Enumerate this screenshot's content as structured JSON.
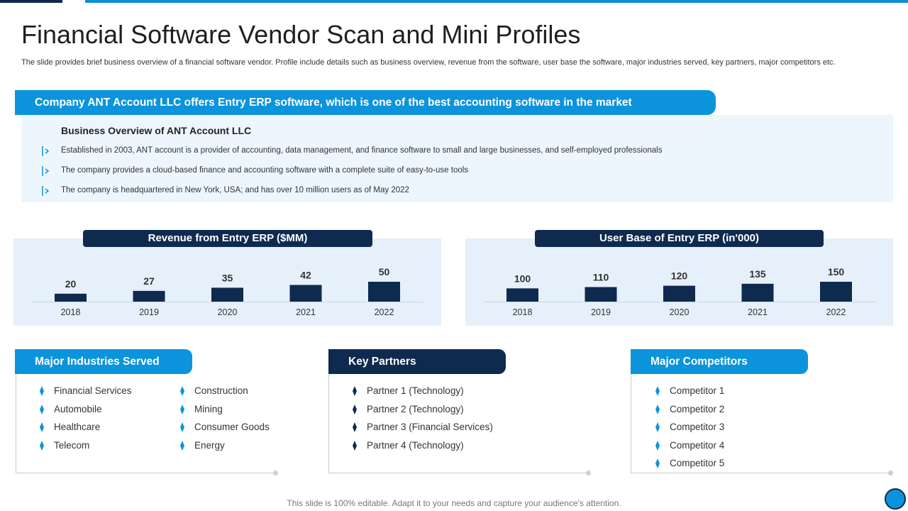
{
  "title": "Financial Software Vendor Scan and Mini Profiles",
  "subtitle": "The slide provides brief business overview of a financial software vendor. Profile include details such as business overview, revenue from the software, user base the software, major industries served, key partners, major competitors etc.",
  "banner": "Company ANT Account LLC offers Entry ERP software,  which is one of the best accounting software in the market",
  "overview": {
    "heading": "Business Overview of ANT Account  LLC",
    "items": [
      "Established in 2003, ANT account is a provider of accounting, data management, and finance software to small and large businesses, and self-employed professionals",
      "The company provides a cloud-based finance and accounting software with a complete suite of easy-to-use tools",
      "The company is headquartered in New York,  USA;  and has over  10 million users as of May  2022"
    ]
  },
  "chart_data": [
    {
      "type": "bar",
      "title": "Revenue from Entry ERP ($MM)",
      "categories": [
        "2018",
        "2019",
        "2020",
        "2021",
        "2022"
      ],
      "values": [
        20,
        27,
        35,
        42,
        50
      ],
      "color": "#0f2a4f"
    },
    {
      "type": "bar",
      "title": "User Base of Entry ERP (in'000)",
      "categories": [
        "2018",
        "2019",
        "2020",
        "2021",
        "2022"
      ],
      "values": [
        100,
        110,
        120,
        135,
        150
      ],
      "color": "#0f2a4f"
    }
  ],
  "industries": {
    "title": "Major Industries Served",
    "col1": [
      "Financial Services",
      "Automobile",
      "Healthcare",
      "Telecom"
    ],
    "col2": [
      "Construction",
      "Mining",
      "Consumer  Goods",
      "Energy"
    ]
  },
  "partners": {
    "title": "Key Partners",
    "items": [
      "Partner 1 (Technology)",
      "Partner 2 (Technology)",
      "Partner 3 (Financial Services)",
      "Partner 4 (Technology)"
    ]
  },
  "competitors": {
    "title": "Major Competitors",
    "items": [
      "Competitor  1",
      "Competitor  2",
      "Competitor  3",
      "Competitor  4",
      "Competitor  5"
    ]
  },
  "footer": "This slide is 100% editable. Adapt it to your needs and capture your audience's attention.",
  "colors": {
    "accent": "#0b94db",
    "dark": "#0f2a4f",
    "panel": "#e6f0fa"
  }
}
